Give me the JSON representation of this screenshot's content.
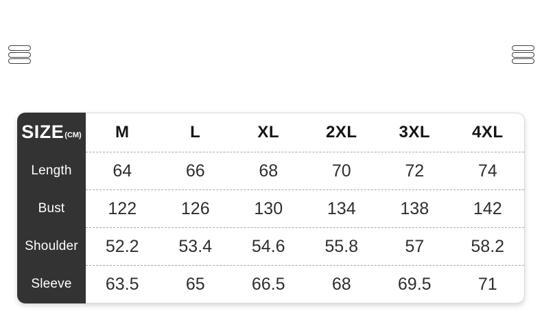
{
  "decorations": {
    "left_icon": "triple-lines",
    "right_icon": "triple-lines"
  },
  "colors": {
    "sidebar_background": "#333333",
    "header_text": "#141414",
    "value_text": "#2e2e2e",
    "divider": "#a6a6a6",
    "table_border": "#d9d9d9"
  },
  "chart_data": {
    "type": "table",
    "title": "SIZE",
    "unit": "(CM)",
    "columns": [
      "M",
      "L",
      "XL",
      "2XL",
      "3XL",
      "4XL"
    ],
    "rows": [
      {
        "label": "Length",
        "values": [
          "64",
          "66",
          "68",
          "70",
          "72",
          "74"
        ]
      },
      {
        "label": "Bust",
        "values": [
          "122",
          "126",
          "130",
          "134",
          "138",
          "142"
        ]
      },
      {
        "label": "Shoulder",
        "values": [
          "52.2",
          "53.4",
          "54.6",
          "55.8",
          "57",
          "58.2"
        ]
      },
      {
        "label": "Sleeve",
        "values": [
          "63.5",
          "65",
          "66.5",
          "68",
          "69.5",
          "71"
        ]
      }
    ]
  }
}
